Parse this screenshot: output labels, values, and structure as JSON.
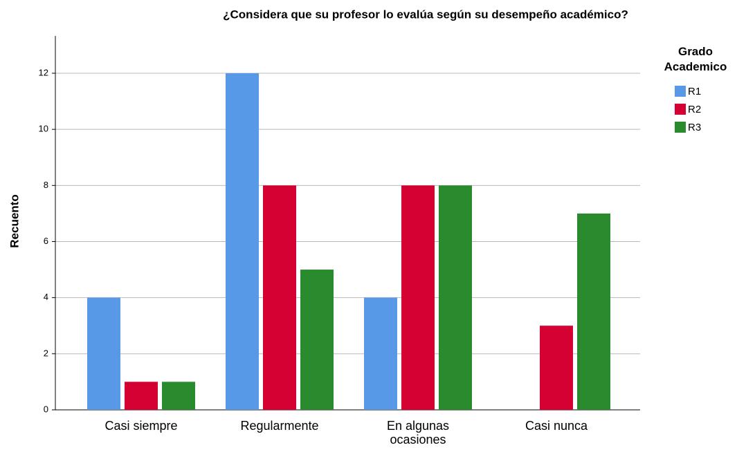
{
  "chart_data": {
    "type": "bar",
    "title": "¿Considera que su profesor lo evalúa según su desempeño académico?",
    "y_label": "Recuento",
    "legend_title": "Grado Academico",
    "legend_position": "right",
    "categories": [
      "Casi siempre",
      "Regularmente",
      "En algunas ocasiones",
      "Casi nunca"
    ],
    "series": [
      {
        "name": "R1",
        "color": "#5799e6",
        "values": [
          4,
          12,
          4,
          0
        ]
      },
      {
        "name": "R2",
        "color": "#d50032",
        "values": [
          1,
          8,
          8,
          3
        ]
      },
      {
        "name": "R3",
        "color": "#2a8a2e",
        "values": [
          1,
          5,
          8,
          7
        ]
      }
    ],
    "ylim": [
      0,
      13.33
    ],
    "yticks": [
      0,
      2,
      4,
      6,
      8,
      10,
      12
    ],
    "grid": true
  }
}
